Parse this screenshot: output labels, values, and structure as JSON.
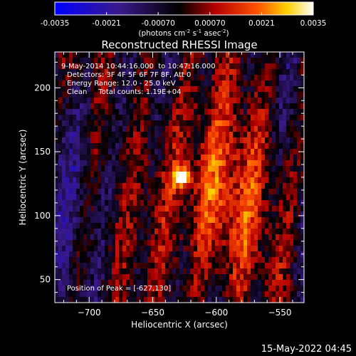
{
  "chart_data": {
    "type": "heatmap",
    "title": "Reconstructed RHESSI Image",
    "colorbar": {
      "ticks": [
        "-0.0035",
        "-0.0021",
        "-0.00070",
        "0.00070",
        "0.0021",
        "0.0035"
      ],
      "range": [
        -0.0035,
        0.0035
      ],
      "unit_main": "(photons cm",
      "unit_exp1": "-2",
      "unit_mid": " s",
      "unit_exp2": "-1",
      "unit_end": " asec",
      "unit_exp3": "-2",
      "unit_close": ")",
      "colormap": [
        "#0000ff",
        "#3a1a8a",
        "#000000",
        "#b40000",
        "#ff5000",
        "#ffd200",
        "#ffffff"
      ]
    },
    "annotations": {
      "time": "9-May-2014 10:44:16.000  to 10:47:16.000",
      "detectors": "Detectors: 3F 4F 5F 6F 7F 8F, Att 0",
      "energy": "Energy Range: 12.0 - 25.0 keV",
      "clean": "Clean     Total counts: 1.19E+04",
      "peak": "Position of Peak = [-627,130]"
    },
    "xlabel": "Heliocentric X (arcsec)",
    "ylabel": "Heliocentric Y (arcsec)",
    "xlim": [
      -727,
      -531
    ],
    "ylim": [
      32,
      228
    ],
    "xticks": [
      -700,
      -650,
      -600,
      -550
    ],
    "yticks": [
      50,
      100,
      150,
      200
    ],
    "peak": {
      "x": -627,
      "y": 130
    },
    "timestamp": "15-May-2022 04:45"
  }
}
